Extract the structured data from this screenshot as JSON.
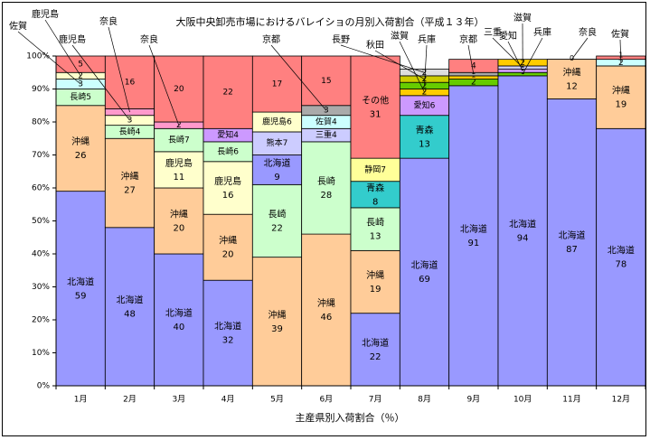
{
  "chart_data": {
    "type": "bar",
    "stacked": true,
    "title": "大阪中央卸売市場におけるバレイショの月別入荷割合（平成１３年）",
    "xlabel": "主産県別入荷割合（％）",
    "ylabel": "",
    "ylim": [
      0,
      100
    ],
    "yticks": [
      "0%",
      "10%",
      "20%",
      "30%",
      "40%",
      "50%",
      "60%",
      "70%",
      "80%",
      "90%",
      "100%"
    ],
    "categories": [
      "1月",
      "2月",
      "3月",
      "4月",
      "5月",
      "6月",
      "7月",
      "8月",
      "9月",
      "10月",
      "11月",
      "12月"
    ],
    "colors": {
      "北海道": "#9999ff",
      "沖縄": "#ffcc99",
      "長崎": "#ccffcc",
      "鹿児島": "#ffffcc",
      "熊本": "#ccccff",
      "三重": "#ccccff",
      "佐賀": "#ccffff",
      "愛知": "#cc99ff",
      "青森": "#33cccc",
      "静岡": "#ffff99",
      "秋田": "#cccc00",
      "滋賀": "#ffcc00",
      "兵庫": "#66cc00",
      "京都": "#aaaaaa",
      "奈良": "#ff99cc",
      "その他": "#ff8080"
    },
    "months": [
      {
        "label": "1月",
        "segments": [
          {
            "name": "北海道",
            "value": 59,
            "label": "北海道",
            "value_label": "59"
          },
          {
            "name": "沖縄",
            "value": 26,
            "label": "沖縄",
            "value_label": "26"
          },
          {
            "name": "長崎",
            "value": 5,
            "inline_label": "長崎5"
          },
          {
            "name": "佐賀",
            "value": 3,
            "value_label": "3"
          },
          {
            "name": "鹿児島",
            "value": 2,
            "value_label": "2"
          },
          {
            "name": "その他",
            "value": 5,
            "value_label": "5"
          }
        ]
      },
      {
        "label": "2月",
        "segments": [
          {
            "name": "北海道",
            "value": 48,
            "label": "北海道",
            "value_label": "48"
          },
          {
            "name": "沖縄",
            "value": 27,
            "label": "沖縄",
            "value_label": "27"
          },
          {
            "name": "長崎",
            "value": 4,
            "inline_label": "長崎4"
          },
          {
            "name": "鹿児島",
            "value": 3,
            "value_label": "3"
          },
          {
            "name": "奈良",
            "value": 2,
            "value_label": ""
          },
          {
            "name": "その他",
            "value": 16,
            "value_label": "16"
          }
        ]
      },
      {
        "label": "3月",
        "segments": [
          {
            "name": "北海道",
            "value": 40,
            "label": "北海道",
            "value_label": "40"
          },
          {
            "name": "沖縄",
            "value": 20,
            "label": "沖縄",
            "value_label": "20"
          },
          {
            "name": "鹿児島",
            "value": 11,
            "label": "鹿児島",
            "value_label": "11"
          },
          {
            "name": "長崎",
            "value": 7,
            "inline_label": "長崎7"
          },
          {
            "name": "奈良",
            "value": 2,
            "value_label": "2"
          },
          {
            "name": "その他",
            "value": 20,
            "value_label": "20"
          }
        ]
      },
      {
        "label": "4月",
        "segments": [
          {
            "name": "北海道",
            "value": 32,
            "label": "北海道",
            "value_label": "32"
          },
          {
            "name": "沖縄",
            "value": 20,
            "label": "沖縄",
            "value_label": "20"
          },
          {
            "name": "鹿児島",
            "value": 16,
            "label": "鹿児島",
            "value_label": "16"
          },
          {
            "name": "長崎",
            "value": 6,
            "inline_label": "長崎6"
          },
          {
            "name": "愛知",
            "value": 4,
            "inline_label": "愛知4"
          },
          {
            "name": "その他",
            "value": 22,
            "value_label": "22"
          }
        ]
      },
      {
        "label": "5月",
        "segments": [
          {
            "name": "沖縄",
            "value": 39,
            "label": "沖縄",
            "value_label": "39"
          },
          {
            "name": "長崎",
            "value": 22,
            "label": "長崎",
            "value_label": "22"
          },
          {
            "name": "北海道",
            "value": 9,
            "label": "北海道",
            "value_label": "9"
          },
          {
            "name": "熊本",
            "value": 7,
            "inline_label": "熊本7"
          },
          {
            "name": "鹿児島",
            "value": 6,
            "inline_label": "鹿児島6"
          },
          {
            "name": "その他",
            "value": 17,
            "value_label": "17"
          }
        ]
      },
      {
        "label": "6月",
        "segments": [
          {
            "name": "沖縄",
            "value": 46,
            "label": "沖縄",
            "value_label": "46"
          },
          {
            "name": "長崎",
            "value": 28,
            "label": "長崎",
            "value_label": "28"
          },
          {
            "name": "三重",
            "value": 4,
            "inline_label": "三重4"
          },
          {
            "name": "佐賀",
            "value": 4,
            "inline_label": "佐賀4"
          },
          {
            "name": "京都",
            "value": 3,
            "value_label": "3"
          },
          {
            "name": "その他",
            "value": 15,
            "value_label": "15"
          }
        ]
      },
      {
        "label": "7月",
        "segments": [
          {
            "name": "北海道",
            "value": 22,
            "label": "北海道",
            "value_label": "22"
          },
          {
            "name": "沖縄",
            "value": 19,
            "label": "沖縄",
            "value_label": "19"
          },
          {
            "name": "長崎",
            "value": 13,
            "label": "長崎",
            "value_label": "13"
          },
          {
            "name": "青森",
            "value": 8,
            "label": "青森",
            "value_label": "8"
          },
          {
            "name": "静岡",
            "value": 7,
            "inline_label": "静岡7"
          },
          {
            "name": "その他",
            "value": 31,
            "label": "その他",
            "value_label": "31"
          }
        ]
      },
      {
        "label": "8月",
        "segments": [
          {
            "name": "北海道",
            "value": 69,
            "label": "北海道",
            "value_label": "69"
          },
          {
            "name": "青森",
            "value": 13,
            "label": "青森",
            "value_label": "13"
          },
          {
            "name": "愛知",
            "value": 6,
            "inline_label": "愛知6"
          },
          {
            "name": "滋賀",
            "value": 2,
            "value_label": "2"
          },
          {
            "name": "兵庫",
            "value": 2,
            "value_label": "2"
          },
          {
            "name": "秋田",
            "value": 2,
            "value_label": "2"
          },
          {
            "name": "長野",
            "value": 2,
            "value_label": "2"
          }
        ]
      },
      {
        "label": "9月",
        "segments": [
          {
            "name": "北海道",
            "value": 91,
            "label": "北海道",
            "value_label": "91"
          },
          {
            "name": "兵庫",
            "value": 2,
            "value_label": "2"
          },
          {
            "name": "滋賀",
            "value": 1,
            "value_label": "1"
          },
          {
            "name": "京都",
            "value": 1,
            "value_label": "1"
          },
          {
            "name": "その他",
            "value": 4,
            "value_label": "4"
          }
        ]
      },
      {
        "label": "10月",
        "segments": [
          {
            "name": "北海道",
            "value": 94,
            "label": "北海道",
            "value_label": "94"
          },
          {
            "name": "兵庫",
            "value": 1,
            "value_label": "1"
          },
          {
            "name": "愛知",
            "value": 1,
            "value_label": "1"
          },
          {
            "name": "三重",
            "value": 1,
            "value_label": "1"
          },
          {
            "name": "滋賀",
            "value": 2,
            "value_label": "2"
          }
        ]
      },
      {
        "label": "11月",
        "segments": [
          {
            "name": "北海道",
            "value": 87,
            "label": "北海道",
            "value_label": "87"
          },
          {
            "name": "沖縄",
            "value": 12,
            "label": "沖縄",
            "value_label": "12"
          },
          {
            "name": "奈良",
            "value": 0,
            "value_label": "0"
          }
        ]
      },
      {
        "label": "12月",
        "segments": [
          {
            "name": "北海道",
            "value": 78,
            "label": "北海道",
            "value_label": "78"
          },
          {
            "name": "沖縄",
            "value": 19,
            "label": "沖縄",
            "value_label": "19"
          },
          {
            "name": "佐賀",
            "value": 2,
            "value_label": "2"
          },
          {
            "name": "その他",
            "value": 1,
            "value_label": "1"
          }
        ]
      }
    ],
    "callouts": [
      {
        "text": "佐賀",
        "month": "1月",
        "segment": "佐賀"
      },
      {
        "text": "鹿児島",
        "month": "1月",
        "segment": "鹿児島"
      },
      {
        "text": "鹿児島",
        "month": "2月",
        "segment": "鹿児島"
      },
      {
        "text": "奈良",
        "month": "2月",
        "segment": "奈良"
      },
      {
        "text": "奈良",
        "month": "3月",
        "segment": "奈良"
      },
      {
        "text": "京都",
        "month": "6月",
        "segment": "京都"
      },
      {
        "text": "長野",
        "month": "8月",
        "segment": "長野"
      },
      {
        "text": "秋田",
        "month": "8月",
        "segment": "秋田"
      },
      {
        "text": "滋賀",
        "month": "8月",
        "segment": "滋賀"
      },
      {
        "text": "兵庫",
        "month": "8月",
        "segment": "兵庫"
      },
      {
        "text": "京都",
        "month": "9月",
        "segment": "京都"
      },
      {
        "text": "三重",
        "month": "10月",
        "segment": "三重"
      },
      {
        "text": "愛知",
        "month": "10月",
        "segment": "愛知"
      },
      {
        "text": "滋賀",
        "month": "10月",
        "segment": "滋賀"
      },
      {
        "text": "兵庫",
        "month": "10月",
        "segment": "兵庫"
      },
      {
        "text": "奈良",
        "month": "11月",
        "segment": "奈良"
      },
      {
        "text": "佐賀",
        "month": "12月",
        "segment": "佐賀"
      }
    ]
  }
}
